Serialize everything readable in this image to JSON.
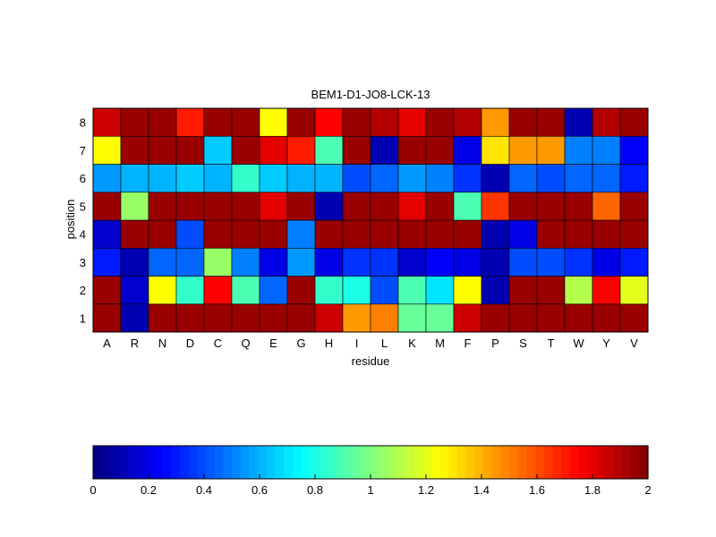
{
  "chart_data": {
    "type": "heatmap",
    "title": "BEM1-D1-JO8-LCK-13",
    "xlabel": "residue",
    "ylabel": "position",
    "x_categories": [
      "A",
      "R",
      "N",
      "D",
      "C",
      "Q",
      "E",
      "G",
      "H",
      "I",
      "L",
      "K",
      "M",
      "F",
      "P",
      "S",
      "T",
      "W",
      "Y",
      "V"
    ],
    "y_categories": [
      "1",
      "2",
      "3",
      "4",
      "5",
      "6",
      "7",
      "8"
    ],
    "values": [
      [
        1.95,
        0.1,
        1.95,
        1.95,
        1.95,
        1.95,
        1.95,
        1.95,
        1.85,
        1.45,
        1.5,
        0.95,
        0.95,
        1.85,
        1.95,
        1.95,
        1.95,
        1.95,
        1.95,
        1.95
      ],
      [
        1.95,
        0.15,
        1.25,
        0.85,
        1.75,
        0.9,
        0.45,
        1.95,
        0.85,
        0.8,
        0.4,
        0.9,
        0.7,
        1.25,
        0.1,
        1.95,
        1.95,
        1.1,
        1.75,
        1.2
      ],
      [
        0.3,
        0.1,
        0.45,
        0.45,
        1.05,
        0.5,
        0.2,
        0.55,
        0.2,
        0.35,
        0.35,
        0.15,
        0.25,
        0.2,
        0.1,
        0.4,
        0.4,
        0.35,
        0.2,
        0.3
      ],
      [
        0.15,
        1.95,
        1.95,
        0.4,
        1.95,
        1.95,
        1.95,
        0.5,
        1.95,
        1.95,
        1.95,
        1.95,
        1.95,
        1.95,
        0.1,
        0.2,
        1.95,
        1.95,
        1.95,
        1.95
      ],
      [
        1.95,
        1.05,
        1.95,
        1.95,
        1.95,
        1.95,
        1.8,
        1.95,
        0.1,
        1.95,
        1.95,
        1.8,
        1.95,
        0.9,
        1.65,
        1.95,
        1.95,
        1.95,
        1.55,
        1.95
      ],
      [
        0.55,
        0.6,
        0.6,
        0.65,
        0.6,
        0.85,
        0.65,
        0.6,
        0.6,
        0.4,
        0.45,
        0.55,
        0.5,
        0.35,
        0.1,
        0.45,
        0.4,
        0.45,
        0.45,
        0.3
      ],
      [
        1.25,
        1.95,
        1.95,
        1.95,
        0.65,
        1.95,
        1.8,
        1.7,
        0.9,
        1.95,
        0.1,
        1.95,
        1.95,
        0.2,
        1.3,
        1.45,
        1.45,
        0.5,
        0.5,
        0.25
      ],
      [
        1.85,
        1.95,
        1.95,
        1.7,
        1.95,
        1.95,
        1.25,
        1.95,
        1.75,
        1.95,
        1.9,
        1.8,
        1.95,
        1.9,
        1.45,
        1.95,
        1.95,
        0.1,
        1.9,
        1.95
      ]
    ],
    "colormap": "jet",
    "clim": [
      0,
      2
    ],
    "colorbar": {
      "orientation": "horizontal",
      "placement": "bottom",
      "ticks": [
        0,
        0.2,
        0.4,
        0.6,
        0.8,
        1,
        1.2,
        1.4,
        1.6,
        1.8,
        2
      ],
      "tick_labels": [
        "0",
        "0.2",
        "0.4",
        "0.6",
        "0.8",
        "1",
        "1.2",
        "1.4",
        "1.6",
        "1.8",
        "2"
      ]
    },
    "grid": true
  }
}
